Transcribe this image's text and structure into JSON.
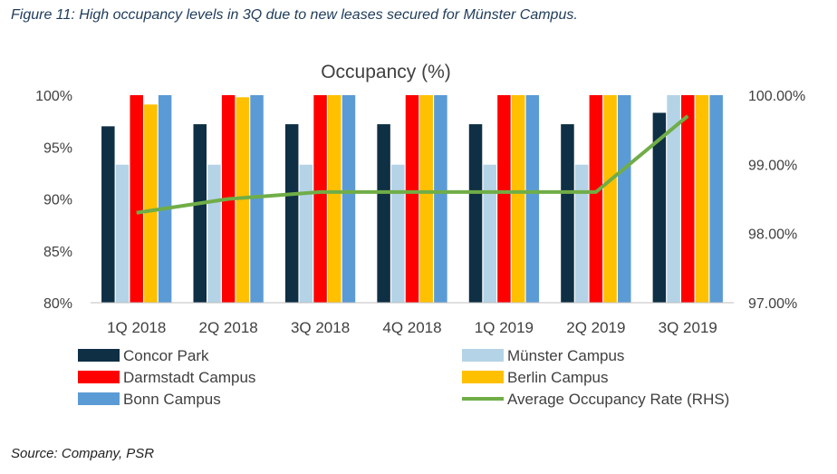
{
  "caption": "Figure 11: High occupancy levels in 3Q due to new leases secured for Münster Campus.",
  "source": "Source: Company, PSR",
  "chart_data": {
    "type": "bar",
    "title": "Occupancy (%)",
    "categories": [
      "1Q 2018",
      "2Q 2018",
      "3Q 2018",
      "4Q 2018",
      "1Q 2019",
      "2Q 2019",
      "3Q 2019"
    ],
    "ylim": [
      80,
      100
    ],
    "y_ticks": [
      80,
      85,
      90,
      95,
      100
    ],
    "y_tick_labels": [
      "80%",
      "85%",
      "90%",
      "95%",
      "100%"
    ],
    "y2lim": [
      97.0,
      100.0
    ],
    "y2_ticks": [
      97.0,
      98.0,
      99.0,
      100.0
    ],
    "y2_tick_labels": [
      "97.00%",
      "98.00%",
      "99.00%",
      "100.00%"
    ],
    "grid": false,
    "legend_position": "bottom",
    "series": [
      {
        "name": "Concor Park",
        "type": "bar",
        "axis": "left",
        "color": "#0e2f44",
        "values": [
          97.0,
          97.2,
          97.2,
          97.2,
          97.2,
          97.2,
          98.3
        ]
      },
      {
        "name": "Münster Campus",
        "type": "bar",
        "axis": "left",
        "color": "#b4d3e6",
        "values": [
          93.3,
          93.3,
          93.3,
          93.3,
          93.3,
          93.3,
          100
        ]
      },
      {
        "name": "Darmstadt Campus",
        "type": "bar",
        "axis": "left",
        "color": "#ff0000",
        "values": [
          100,
          100,
          100,
          100,
          100,
          100,
          100
        ]
      },
      {
        "name": "Berlin Campus",
        "type": "bar",
        "axis": "left",
        "color": "#ffc000",
        "values": [
          99.1,
          99.8,
          100,
          100,
          100,
          100,
          100
        ]
      },
      {
        "name": "Bonn Campus",
        "type": "bar",
        "axis": "left",
        "color": "#5b9bd5",
        "values": [
          100,
          100,
          100,
          100,
          100,
          100,
          100
        ]
      },
      {
        "name": "Average Occupancy Rate (RHS)",
        "type": "line",
        "axis": "right",
        "color": "#70ad47",
        "values": [
          98.3,
          98.5,
          98.6,
          98.6,
          98.6,
          98.6,
          99.7
        ]
      }
    ]
  }
}
